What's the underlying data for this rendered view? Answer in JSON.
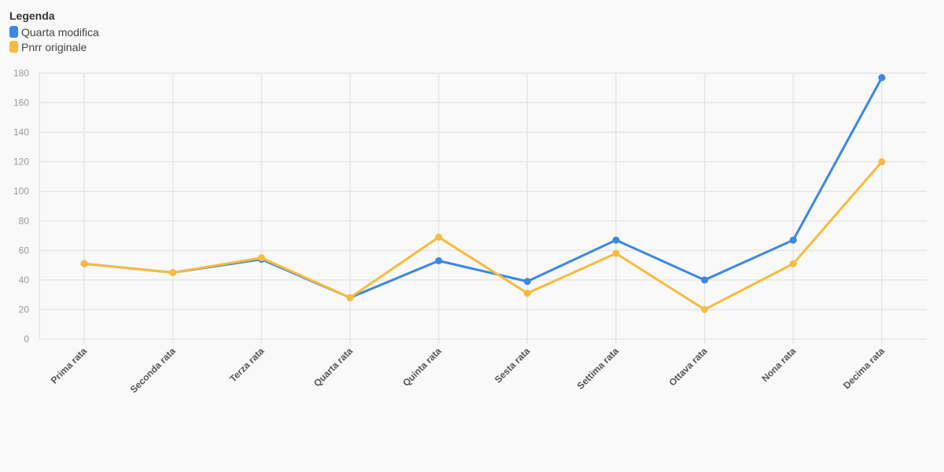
{
  "legend": {
    "title": "Legenda"
  },
  "chart_data": {
    "type": "line",
    "categories": [
      "Prima rata",
      "Seconda rata",
      "Terza rata",
      "Quarta rata",
      "Quinta rata",
      "Sesta rata",
      "Settima rata",
      "Ottava rata",
      "Nona rata",
      "Decima rata"
    ],
    "series": [
      {
        "name": "Quarta modifica",
        "color": "#3a87e6",
        "values": [
          51,
          45,
          54,
          28,
          53,
          39,
          67,
          40,
          67,
          177
        ]
      },
      {
        "name": "Pnrr originale",
        "color": "#f8bb3c",
        "values": [
          51,
          45,
          55,
          28,
          69,
          31,
          58,
          20,
          51,
          120
        ]
      }
    ],
    "ylim": [
      0,
      180
    ],
    "yticks": [
      0,
      20,
      40,
      60,
      80,
      100,
      120,
      140,
      160,
      180
    ],
    "grid": true,
    "legend_position": "top-left"
  }
}
